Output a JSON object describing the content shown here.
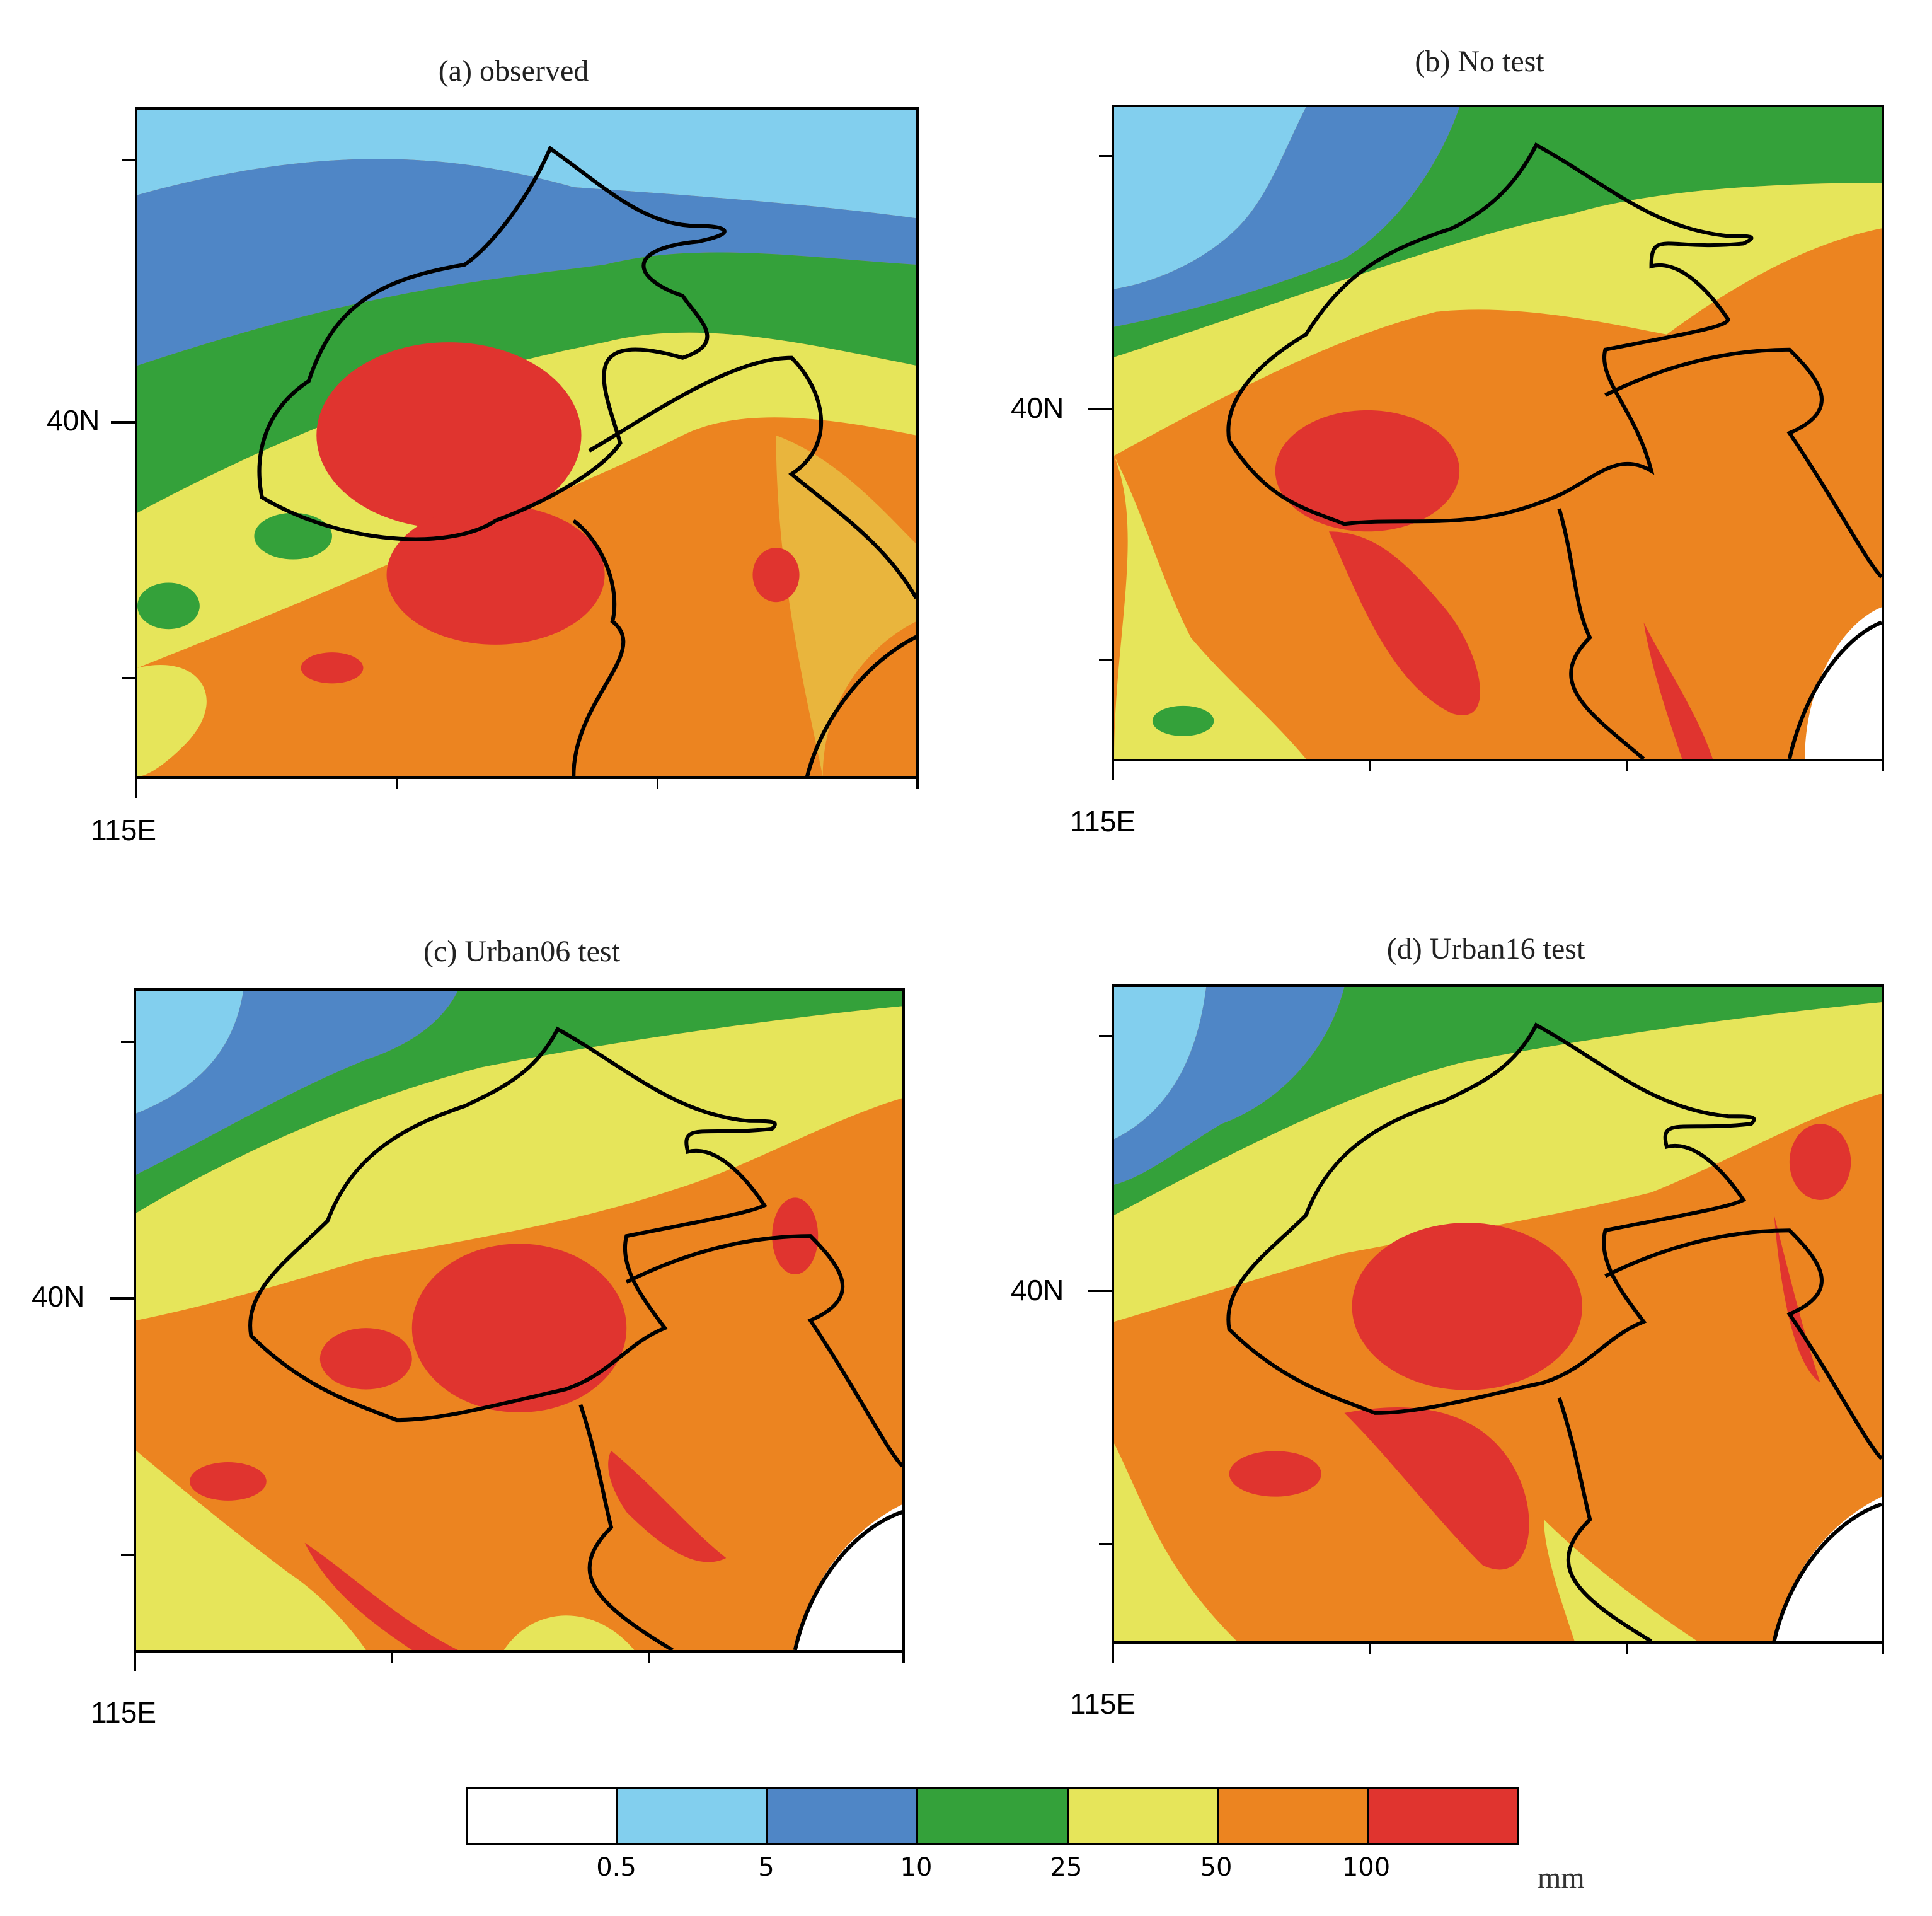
{
  "panels": [
    {
      "title": "(a) observed",
      "lat_label": "40N",
      "lon_label": "115E",
      "variant": "observed"
    },
    {
      "title": "(b) No test",
      "lat_label": "40N",
      "lon_label": "115E",
      "variant": "notest"
    },
    {
      "title": "(c) Urban06 test",
      "lat_label": "40N",
      "lon_label": "115E",
      "variant": "urban06"
    },
    {
      "title": "(d) Urban16 test",
      "lat_label": "40N",
      "lon_label": "115E",
      "variant": "urban16"
    }
  ],
  "legend": {
    "labels": [
      "0.5",
      "5",
      "10",
      "25",
      "50",
      "100"
    ],
    "unit": "mm",
    "colors": [
      "#ffffff",
      "#82cfee",
      "#4f86c6",
      "#34a13a",
      "#e6e55a",
      "#ec8420",
      "#e0342f"
    ]
  }
}
